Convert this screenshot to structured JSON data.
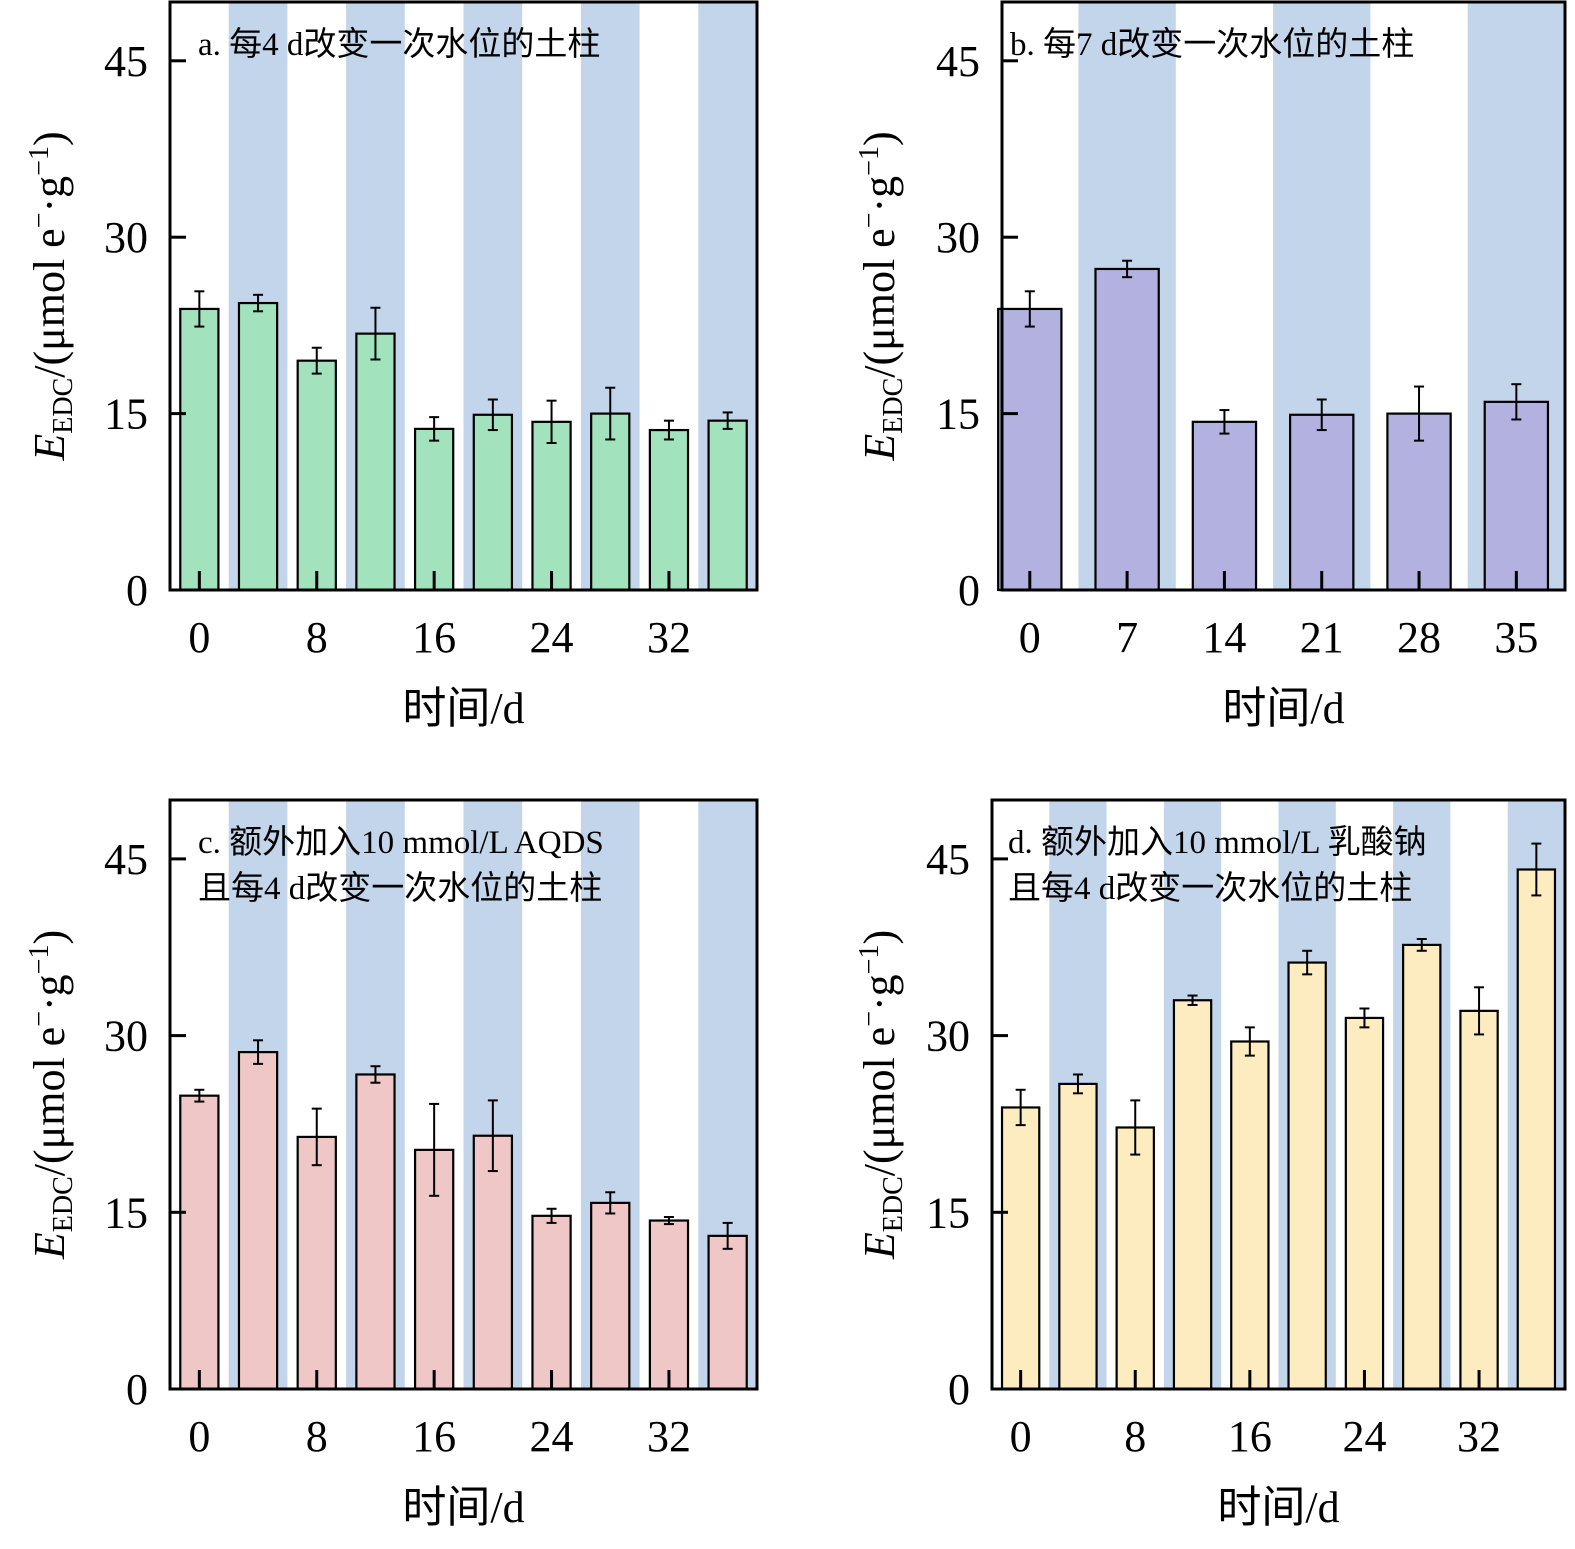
{
  "colors": {
    "band": "#c2d5ea",
    "axis": "#000000",
    "panel_a": "#a2e3bd",
    "panel_b": "#b2b1df",
    "panel_c": "#efc7c6",
    "panel_d": "#fdecbf"
  },
  "chart_data": [
    {
      "id": "a",
      "type": "bar",
      "title_lines": [
        "a. 每4 d改变一次水位的土柱"
      ],
      "xlabel": "时间/d",
      "ylabel": "E_EDC/(μmol e⁻·g⁻¹)",
      "ylabel_parts": {
        "main": "E",
        "sub": "EDC",
        "rest": "/(μmol e",
        "sup1": "−",
        "mid": "·g",
        "sup2": "−1",
        "end": ")"
      },
      "ylim": [
        0,
        50
      ],
      "yticks": [
        0,
        15,
        30,
        45
      ],
      "x": [
        0,
        4,
        8,
        12,
        16,
        20,
        24,
        28,
        32,
        36
      ],
      "xticks": [
        0,
        8,
        16,
        24,
        32
      ],
      "values": [
        23.9,
        24.4,
        19.5,
        21.8,
        13.7,
        14.9,
        14.3,
        15.0,
        13.6,
        14.4
      ],
      "errors": [
        1.5,
        0.7,
        1.1,
        2.2,
        1.0,
        1.3,
        1.8,
        2.2,
        0.8,
        0.7
      ],
      "shaded_intervals": [
        [
          2,
          6
        ],
        [
          10,
          14
        ],
        [
          18,
          22
        ],
        [
          26,
          30
        ],
        [
          34,
          38
        ]
      ],
      "xlim": [
        -2,
        38
      ],
      "color_key": "panel_a"
    },
    {
      "id": "b",
      "type": "bar",
      "title_lines": [
        "b. 每7 d改变一次水位的土柱"
      ],
      "xlabel": "时间/d",
      "ylabel": "E_EDC/(μmol e⁻·g⁻¹)",
      "ylabel_parts": {
        "main": "E",
        "sub": "EDC",
        "rest": "/(μmol e",
        "sup1": "−",
        "mid": "·g",
        "sup2": "−1",
        "end": ")"
      },
      "ylim": [
        0,
        50
      ],
      "yticks": [
        0,
        15,
        30,
        45
      ],
      "x": [
        0,
        7,
        14,
        21,
        28,
        35
      ],
      "xticks": [
        0,
        7,
        14,
        21,
        28,
        35
      ],
      "values": [
        23.9,
        27.3,
        14.3,
        14.9,
        15.0,
        16.0
      ],
      "errors": [
        1.5,
        0.7,
        1.0,
        1.3,
        2.3,
        1.5
      ],
      "shaded_intervals": [
        [
          3.5,
          10.5
        ],
        [
          17.5,
          24.5
        ],
        [
          31.5,
          38.5
        ]
      ],
      "xlim": [
        -2,
        38.5
      ],
      "color_key": "panel_b"
    },
    {
      "id": "c",
      "type": "bar",
      "title_lines": [
        "c. 额外加入10 mmol/L AQDS",
        "且每4 d改变一次水位的土柱"
      ],
      "xlabel": "时间/d",
      "ylabel": "E_EDC/(μmol e⁻·g⁻¹)",
      "ylabel_parts": {
        "main": "E",
        "sub": "EDC",
        "rest": "/(μmol e",
        "sup1": "−",
        "mid": "·g",
        "sup2": "−1",
        "end": ")"
      },
      "ylim": [
        0,
        50
      ],
      "yticks": [
        0,
        15,
        30,
        45
      ],
      "x": [
        0,
        4,
        8,
        12,
        16,
        20,
        24,
        28,
        32,
        36
      ],
      "xticks": [
        0,
        8,
        16,
        24,
        32
      ],
      "values": [
        24.9,
        28.6,
        21.4,
        26.7,
        20.3,
        21.5,
        14.7,
        15.8,
        14.3,
        13.0
      ],
      "errors": [
        0.5,
        1.0,
        2.4,
        0.7,
        3.9,
        3.0,
        0.6,
        0.9,
        0.3,
        1.1
      ],
      "shaded_intervals": [
        [
          2,
          6
        ],
        [
          10,
          14
        ],
        [
          18,
          22
        ],
        [
          26,
          30
        ],
        [
          34,
          38
        ]
      ],
      "xlim": [
        -2,
        38
      ],
      "color_key": "panel_c"
    },
    {
      "id": "d",
      "type": "bar",
      "title_lines": [
        "d. 额外加入10 mmol/L 乳酸钠",
        "且每4 d改变一次水位的土柱"
      ],
      "xlabel": "时间/d",
      "ylabel": "E_EDC/(μmol e⁻·g⁻¹)",
      "ylabel_parts": {
        "main": "E",
        "sub": "EDC",
        "rest": "/(μmol e",
        "sup1": "−",
        "mid": "·g",
        "sup2": "−1",
        "end": ")"
      },
      "ylim": [
        0,
        50
      ],
      "yticks": [
        0,
        15,
        30,
        45
      ],
      "x": [
        0,
        4,
        8,
        12,
        16,
        20,
        24,
        28,
        32,
        36
      ],
      "xticks": [
        0,
        8,
        16,
        24,
        32
      ],
      "values": [
        23.9,
        25.9,
        22.2,
        33.0,
        29.5,
        36.2,
        31.5,
        37.7,
        32.1,
        44.1
      ],
      "errors": [
        1.5,
        0.8,
        2.3,
        0.4,
        1.2,
        1.0,
        0.8,
        0.5,
        2.0,
        2.2
      ],
      "shaded_intervals": [
        [
          2,
          6
        ],
        [
          10,
          14
        ],
        [
          18,
          22
        ],
        [
          26,
          30
        ],
        [
          34,
          38
        ]
      ],
      "xlim": [
        -2,
        38
      ],
      "color_key": "panel_d"
    }
  ]
}
